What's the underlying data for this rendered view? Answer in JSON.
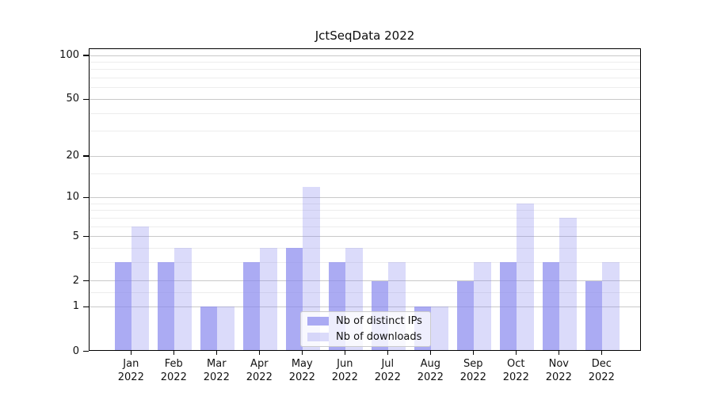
{
  "figure": {
    "title": "JctSeqData 2022"
  },
  "legend": {
    "items": [
      {
        "label": "Nb of distinct IPs"
      },
      {
        "label": "Nb of downloads"
      }
    ]
  },
  "chart_data": {
    "type": "bar",
    "title": "JctSeqData 2022",
    "categories": [
      "Jan",
      "Feb",
      "Mar",
      "Apr",
      "May",
      "Jun",
      "Jul",
      "Aug",
      "Sep",
      "Oct",
      "Nov",
      "Dec"
    ],
    "x_tick_year": "2022",
    "series": [
      {
        "name": "Nb of distinct IPs",
        "color": "#8888ee",
        "alpha": 0.7,
        "values": [
          3,
          3,
          1,
          3,
          4,
          3,
          2,
          1,
          2,
          3,
          3,
          2
        ]
      },
      {
        "name": "Nb of downloads",
        "color": "#8888ee",
        "alpha": 0.3,
        "values": [
          6,
          4,
          1,
          4,
          12,
          4,
          3,
          1,
          3,
          9,
          7,
          3
        ]
      }
    ],
    "xlabel": "",
    "ylabel": "",
    "yscale": "log1p",
    "ylim": [
      0,
      112
    ],
    "y_major_ticks": [
      0,
      1,
      2,
      5,
      10,
      20,
      50,
      100
    ],
    "y_minor_gridlines": [
      1.5,
      3,
      4,
      6,
      7,
      8,
      9,
      15,
      30,
      40,
      60,
      70,
      80,
      90
    ],
    "grid": "horizontal",
    "legend_position": "lower center"
  }
}
